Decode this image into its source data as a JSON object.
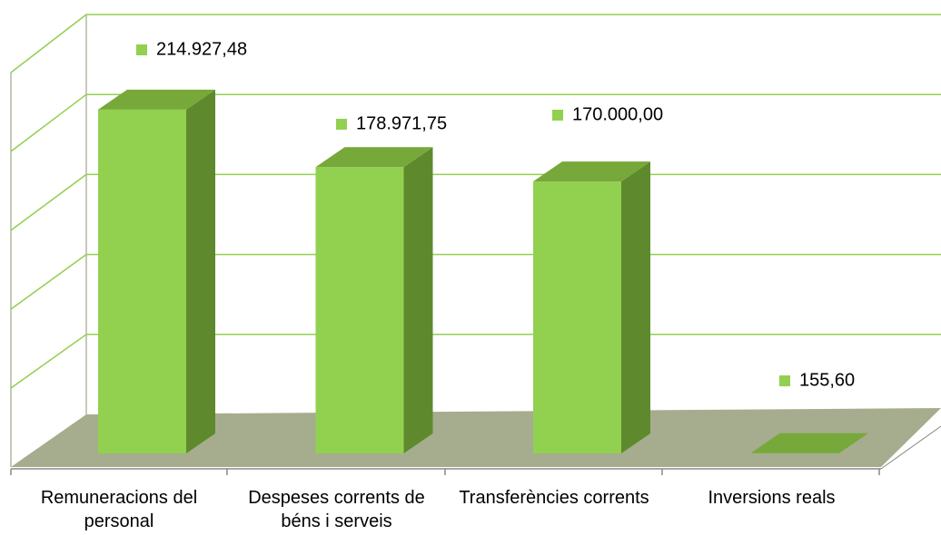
{
  "chart_data": {
    "type": "bar3d",
    "categories": [
      "Remuneracions del personal",
      "Despeses corrents de béns i serveis",
      "Transferències corrents",
      "Inversions reals"
    ],
    "values": [
      214927.48,
      178971.75,
      170000.0,
      155.6
    ],
    "value_labels": [
      "214.927,48",
      "178.971,75",
      "170.000,00",
      "155,60"
    ],
    "color": "#92d050",
    "ylim": [
      0,
      250000
    ],
    "yticks": [
      0,
      50000,
      100000,
      150000,
      200000,
      250000
    ],
    "grid": true
  }
}
